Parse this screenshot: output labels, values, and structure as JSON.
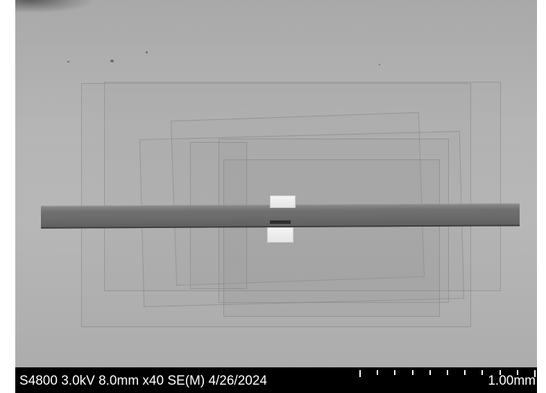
{
  "image": {
    "kind": "scanning electron micrograph",
    "micrograph_info": "S4800 3.0kV 8.0mm x40 SE(M) 4/26/2024",
    "scale_bar": {
      "label": "1.00mm",
      "divisions": 10
    }
  },
  "colors": {
    "background": "#b4b4b4",
    "specimen_bar": "#6a6a6a",
    "contact_pads": "#efefef",
    "info_bar": "#000000",
    "info_text": "#ffffff"
  }
}
